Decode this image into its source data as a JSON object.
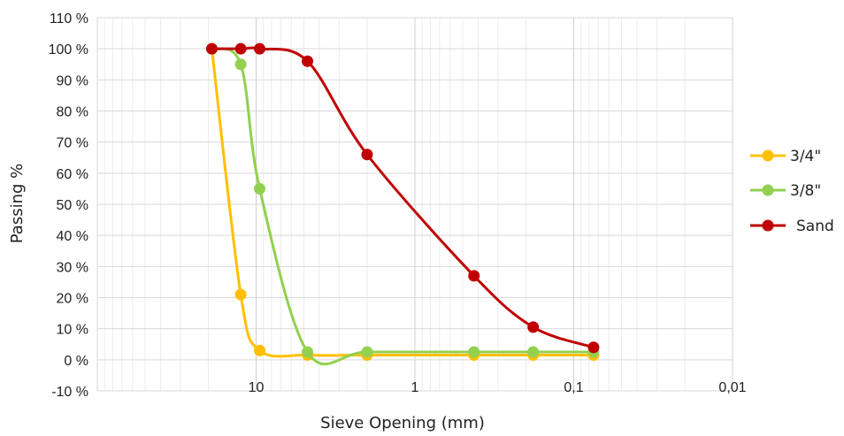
{
  "chart_data": {
    "type": "line",
    "title": "",
    "xlabel": "Sieve Opening (mm)",
    "ylabel": "Passing %",
    "x_scale": "log",
    "x_reversed": true,
    "xlim": [
      100,
      0.01
    ],
    "ylim": [
      -10,
      110
    ],
    "x_ticks": [
      {
        "value": 10,
        "label": "10"
      },
      {
        "value": 1,
        "label": "1"
      },
      {
        "value": 0.1,
        "label": "0,1"
      },
      {
        "value": 0.01,
        "label": "0,01"
      }
    ],
    "y_ticks": [
      {
        "value": 110,
        "label": "110 %"
      },
      {
        "value": 100,
        "label": "100 %"
      },
      {
        "value": 90,
        "label": "90 %"
      },
      {
        "value": 80,
        "label": "80 %"
      },
      {
        "value": 70,
        "label": "70 %"
      },
      {
        "value": 60,
        "label": "60 %"
      },
      {
        "value": 50,
        "label": "50 %"
      },
      {
        "value": 40,
        "label": "40 %"
      },
      {
        "value": 30,
        "label": "30 %"
      },
      {
        "value": 20,
        "label": "20 %"
      },
      {
        "value": 10,
        "label": "10 %"
      },
      {
        "value": 0,
        "label": "0 %"
      },
      {
        "value": -10,
        "label": "-10 %"
      }
    ],
    "grid": true,
    "legend_position": "right",
    "series": [
      {
        "name": "3/4\"",
        "color": "#FFC000",
        "points": [
          {
            "x": 19,
            "y": 100
          },
          {
            "x": 12.5,
            "y": 21
          },
          {
            "x": 9.5,
            "y": 3
          },
          {
            "x": 4.75,
            "y": 1.5
          },
          {
            "x": 2,
            "y": 1.5
          },
          {
            "x": 0.425,
            "y": 1.5
          },
          {
            "x": 0.18,
            "y": 1.5
          },
          {
            "x": 0.075,
            "y": 1.5
          }
        ]
      },
      {
        "name": "3/8\"",
        "color": "#92D050",
        "points": [
          {
            "x": 19,
            "y": 100
          },
          {
            "x": 12.5,
            "y": 95
          },
          {
            "x": 9.5,
            "y": 55
          },
          {
            "x": 4.75,
            "y": 2.5
          },
          {
            "x": 2,
            "y": 2.5
          },
          {
            "x": 0.425,
            "y": 2.5
          },
          {
            "x": 0.18,
            "y": 2.5
          },
          {
            "x": 0.075,
            "y": 2.5
          }
        ]
      },
      {
        "name": "Sand",
        "color": "#C00000",
        "points": [
          {
            "x": 19,
            "y": 100
          },
          {
            "x": 12.5,
            "y": 100
          },
          {
            "x": 9.5,
            "y": 100
          },
          {
            "x": 4.75,
            "y": 96
          },
          {
            "x": 2,
            "y": 66
          },
          {
            "x": 0.425,
            "y": 27
          },
          {
            "x": 0.18,
            "y": 10.5
          },
          {
            "x": 0.075,
            "y": 4
          }
        ]
      }
    ]
  }
}
